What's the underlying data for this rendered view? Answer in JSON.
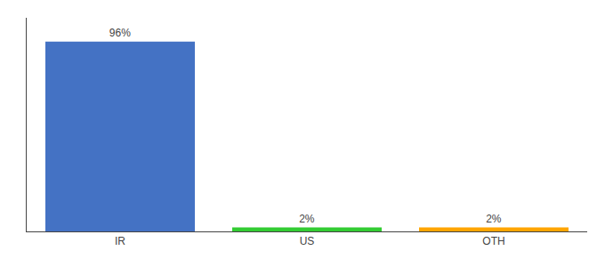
{
  "chart_data": {
    "type": "bar",
    "categories": [
      "IR",
      "US",
      "OTH"
    ],
    "values": [
      96,
      2,
      2
    ],
    "value_labels": [
      "96%",
      "2%",
      "2%"
    ],
    "data_labels": true,
    "colors": [
      "#4472C4",
      "#33CC33",
      "#FFA500"
    ],
    "ylim": [
      0,
      108
    ],
    "grid": false,
    "tick_labels": "x"
  }
}
